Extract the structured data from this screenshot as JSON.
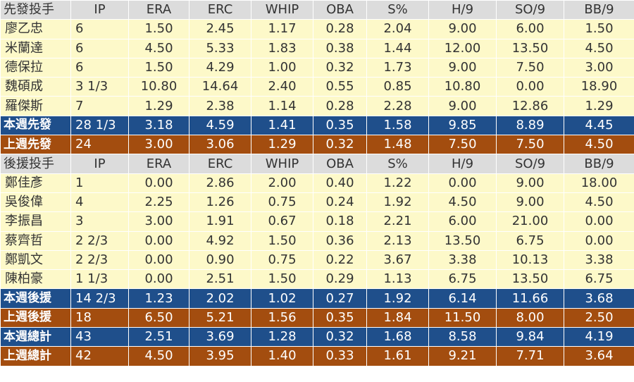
{
  "starters": {
    "header": [
      "先發投手",
      "IP",
      "ERA",
      "ERC",
      "WHIP",
      "OBA",
      "S%",
      "H/9",
      "SO/9",
      "BB/9"
    ],
    "rows": [
      [
        "廖乙忠",
        "6",
        "1.50",
        "2.45",
        "1.17",
        "0.28",
        "2.04",
        "9.00",
        "6.00",
        "1.50"
      ],
      [
        "米蘭達",
        "6",
        "4.50",
        "5.33",
        "1.83",
        "0.38",
        "1.44",
        "12.00",
        "13.50",
        "4.50"
      ],
      [
        "德保拉",
        "6",
        "1.50",
        "4.29",
        "1.00",
        "0.32",
        "1.73",
        "9.00",
        "7.50",
        "3.00"
      ],
      [
        "魏碩成",
        "3 1/3",
        "10.80",
        "14.64",
        "2.40",
        "0.55",
        "0.85",
        "10.80",
        "0.00",
        "18.90"
      ],
      [
        "羅傑斯",
        "7",
        "1.29",
        "2.38",
        "1.14",
        "0.28",
        "2.28",
        "9.00",
        "12.86",
        "1.29"
      ]
    ],
    "this_week": [
      "本週先發",
      "28 1/3",
      "3.18",
      "4.59",
      "1.41",
      "0.35",
      "1.58",
      "9.85",
      "8.89",
      "4.45"
    ],
    "last_week": [
      "上週先發",
      "24",
      "3.00",
      "3.06",
      "1.29",
      "0.32",
      "1.48",
      "7.50",
      "7.50",
      "4.50"
    ]
  },
  "relievers": {
    "header": [
      "後援投手",
      "IP",
      "ERA",
      "ERC",
      "WHIP",
      "OBA",
      "S%",
      "H/9",
      "SO/9",
      "BB/9"
    ],
    "rows": [
      [
        "鄭佳彥",
        "1",
        "0.00",
        "2.86",
        "2.00",
        "0.40",
        "1.22",
        "0.00",
        "9.00",
        "18.00"
      ],
      [
        "吳俊偉",
        "4",
        "2.25",
        "1.26",
        "0.75",
        "0.24",
        "1.92",
        "4.50",
        "9.00",
        "4.50"
      ],
      [
        "李振昌",
        "3",
        "3.00",
        "1.91",
        "0.67",
        "0.18",
        "2.21",
        "6.00",
        "21.00",
        "0.00"
      ],
      [
        "蔡齊哲",
        "2 2/3",
        "0.00",
        "4.92",
        "1.50",
        "0.36",
        "2.13",
        "13.50",
        "6.75",
        "0.00"
      ],
      [
        "鄭凱文",
        "2 2/3",
        "0.00",
        "0.90",
        "0.75",
        "0.22",
        "3.67",
        "3.38",
        "10.13",
        "3.38"
      ],
      [
        "陳柏豪",
        "1 1/3",
        "0.00",
        "2.51",
        "1.50",
        "0.29",
        "1.13",
        "6.75",
        "13.50",
        "6.75"
      ]
    ],
    "this_week": [
      "本週後援",
      "14 2/3",
      "1.23",
      "2.02",
      "1.02",
      "0.27",
      "1.92",
      "6.14",
      "11.66",
      "3.68"
    ],
    "last_week": [
      "上週後援",
      "18",
      "6.50",
      "5.21",
      "1.56",
      "0.35",
      "1.84",
      "11.50",
      "8.00",
      "2.50"
    ]
  },
  "totals": {
    "this_week": [
      "本週總計",
      "43",
      "2.51",
      "3.69",
      "1.28",
      "0.32",
      "1.68",
      "8.58",
      "9.84",
      "4.19"
    ],
    "last_week": [
      "上週總計",
      "42",
      "4.50",
      "3.95",
      "1.40",
      "0.33",
      "1.61",
      "9.21",
      "7.71",
      "3.64"
    ]
  },
  "colors": {
    "header_bg": "#dcdcdc",
    "row_bg": "#fdf9c9",
    "this_week_bg": "#1f4f8b",
    "last_week_bg": "#a34d0f"
  }
}
